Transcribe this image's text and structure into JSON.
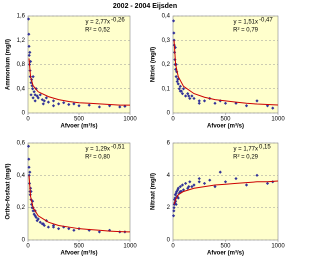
{
  "title": "2002 - 2004 Eijsden",
  "chart_data": [
    {
      "type": "scatter",
      "ylabel": "Ammonium (mg/l)",
      "xlabel": "Afvoer (m³/s)",
      "color": "#333399",
      "x": [
        5,
        8,
        10,
        12,
        15,
        18,
        20,
        22,
        25,
        30,
        35,
        40,
        45,
        50,
        60,
        70,
        80,
        90,
        100,
        120,
        140,
        160,
        180,
        200,
        250,
        300,
        350,
        400,
        450,
        500,
        600,
        700,
        800,
        900,
        950,
        30,
        50,
        70,
        150,
        250
      ],
      "values": [
        1.55,
        1.3,
        1.1,
        0.95,
        0.8,
        1.0,
        0.7,
        0.6,
        0.85,
        0.5,
        0.55,
        0.45,
        0.4,
        0.6,
        0.35,
        0.3,
        0.4,
        0.28,
        0.25,
        0.3,
        0.22,
        0.2,
        0.25,
        0.18,
        0.2,
        0.15,
        0.17,
        0.14,
        0.15,
        0.12,
        0.13,
        0.1,
        0.12,
        0.1,
        0.11,
        0.3,
        0.25,
        0.2,
        0.15,
        0.12
      ],
      "fit": {
        "color": "#cc0000",
        "x": [
          10,
          25,
          50,
          100,
          200,
          300,
          400,
          500,
          600,
          700,
          800,
          900,
          1000
        ],
        "values": [
          0.9,
          0.6,
          0.45,
          0.35,
          0.27,
          0.22,
          0.19,
          0.17,
          0.16,
          0.15,
          0.14,
          0.13,
          0.13
        ]
      },
      "equation": "y = 2,77x",
      "exponent": "-0,26",
      "r2": "R² = 0,52",
      "xlim": [
        0,
        1000
      ],
      "xticks": [
        0,
        500,
        1000
      ],
      "ylim": [
        0,
        1.6
      ],
      "yticks": [
        0,
        {
          "value": 0.4,
          "label": "0,4"
        },
        {
          "value": 0.8,
          "label": "0,8"
        },
        {
          "value": 1.2,
          "label": "1,2"
        },
        {
          "value": 1.6,
          "label": "1,6"
        }
      ],
      "grid": true
    },
    {
      "type": "scatter",
      "ylabel": "Nitriet (mg/l)",
      "xlabel": "Afvoer (m³/s)",
      "color": "#333399",
      "x": [
        5,
        8,
        10,
        12,
        15,
        18,
        20,
        22,
        25,
        30,
        35,
        40,
        45,
        50,
        60,
        70,
        80,
        90,
        100,
        120,
        140,
        160,
        180,
        200,
        250,
        300,
        350,
        400,
        450,
        500,
        600,
        700,
        800,
        900,
        950,
        30,
        50,
        70,
        150,
        250
      ],
      "values": [
        0.38,
        0.33,
        0.3,
        0.28,
        0.25,
        0.22,
        0.2,
        0.27,
        0.18,
        0.15,
        0.17,
        0.13,
        0.14,
        0.12,
        0.1,
        0.11,
        0.09,
        0.08,
        0.1,
        0.07,
        0.08,
        0.06,
        0.07,
        0.06,
        0.05,
        0.05,
        0.06,
        0.04,
        0.05,
        0.04,
        0.04,
        0.03,
        0.05,
        0.03,
        0.02,
        0.2,
        0.14,
        0.09,
        0.07,
        0.04
      ],
      "fit": {
        "color": "#cc0000",
        "x": [
          10,
          25,
          50,
          100,
          200,
          300,
          400,
          500,
          600,
          700,
          800,
          900,
          1000
        ],
        "values": [
          0.3,
          0.2,
          0.15,
          0.11,
          0.08,
          0.065,
          0.055,
          0.05,
          0.045,
          0.04,
          0.037,
          0.035,
          0.033
        ]
      },
      "equation": "y = 1,51x",
      "exponent": "-0,47",
      "r2": "R² = 0,79",
      "xlim": [
        0,
        1000
      ],
      "xticks": [
        0,
        500,
        1000
      ],
      "ylim": [
        0,
        0.4
      ],
      "yticks": [
        0,
        {
          "value": 0.1,
          "label": "0,1"
        },
        {
          "value": 0.2,
          "label": "0,2"
        },
        {
          "value": 0.3,
          "label": "0,3"
        },
        {
          "value": 0.4,
          "label": "0,4"
        }
      ],
      "grid": true
    },
    {
      "type": "scatter",
      "ylabel": "Ortho-fosfaat (mg/l)",
      "xlabel": "Afvoer (m³/s)",
      "color": "#333399",
      "x": [
        5,
        8,
        10,
        12,
        15,
        18,
        20,
        22,
        25,
        30,
        35,
        40,
        45,
        50,
        60,
        70,
        80,
        90,
        100,
        120,
        140,
        160,
        180,
        200,
        250,
        300,
        350,
        400,
        450,
        500,
        600,
        700,
        800,
        900,
        950,
        30,
        50,
        70,
        150,
        250
      ],
      "values": [
        0.58,
        0.5,
        0.45,
        0.4,
        0.35,
        0.42,
        0.3,
        0.28,
        0.32,
        0.25,
        0.22,
        0.2,
        0.24,
        0.18,
        0.16,
        0.15,
        0.14,
        0.12,
        0.13,
        0.11,
        0.1,
        0.09,
        0.12,
        0.08,
        0.09,
        0.07,
        0.08,
        0.07,
        0.06,
        0.07,
        0.06,
        0.05,
        0.06,
        0.05,
        0.05,
        0.3,
        0.2,
        0.18,
        0.1,
        0.08
      ],
      "fit": {
        "color": "#cc0000",
        "x": [
          10,
          25,
          50,
          100,
          200,
          300,
          400,
          500,
          600,
          700,
          800,
          900,
          1000
        ],
        "values": [
          0.4,
          0.27,
          0.2,
          0.15,
          0.11,
          0.09,
          0.08,
          0.07,
          0.065,
          0.06,
          0.055,
          0.052,
          0.05
        ]
      },
      "equation": "y = 1,29x",
      "exponent": "-0,51",
      "r2": "R² = 0,80",
      "xlim": [
        0,
        1000
      ],
      "xticks": [
        0,
        500,
        1000
      ],
      "ylim": [
        0,
        0.6
      ],
      "yticks": [
        0,
        {
          "value": 0.2,
          "label": "0,2"
        },
        {
          "value": 0.4,
          "label": "0,4"
        },
        {
          "value": 0.6,
          "label": "0,6"
        }
      ],
      "grid": true
    },
    {
      "type": "scatter",
      "ylabel": "Nitraat (mg/l)",
      "xlabel": "Afvoer (m³/s)",
      "color": "#333399",
      "x": [
        5,
        8,
        10,
        12,
        15,
        18,
        20,
        22,
        25,
        30,
        35,
        40,
        45,
        50,
        60,
        70,
        80,
        90,
        100,
        120,
        140,
        160,
        180,
        200,
        250,
        300,
        350,
        400,
        450,
        500,
        600,
        700,
        800,
        900,
        950,
        30,
        50,
        70,
        150,
        250
      ],
      "values": [
        1.5,
        1.8,
        2.0,
        2.2,
        2.5,
        2.3,
        2.6,
        2.8,
        2.4,
        2.9,
        3.0,
        2.7,
        3.1,
        3.2,
        2.9,
        3.3,
        3.0,
        3.4,
        3.1,
        3.5,
        3.2,
        3.6,
        3.3,
        3.4,
        3.8,
        3.5,
        3.7,
        3.3,
        4.2,
        3.6,
        3.8,
        3.4,
        4.0,
        3.5,
        3.6,
        2.2,
        2.6,
        3.0,
        3.3,
        3.6
      ],
      "fit": {
        "color": "#cc0000",
        "x": [
          10,
          25,
          50,
          100,
          200,
          300,
          400,
          500,
          600,
          700,
          800,
          900,
          1000
        ],
        "values": [
          2.2,
          2.5,
          2.8,
          3.0,
          3.2,
          3.3,
          3.4,
          3.45,
          3.5,
          3.55,
          3.6,
          3.6,
          3.65
        ]
      },
      "equation": "y = 1,77x",
      "exponent": "0,15",
      "r2": "R² = 0,29",
      "xlim": [
        0,
        1000
      ],
      "xticks": [
        0,
        500,
        1000
      ],
      "ylim": [
        0,
        6
      ],
      "yticks": [
        0,
        2,
        4,
        6
      ],
      "grid": true
    }
  ]
}
